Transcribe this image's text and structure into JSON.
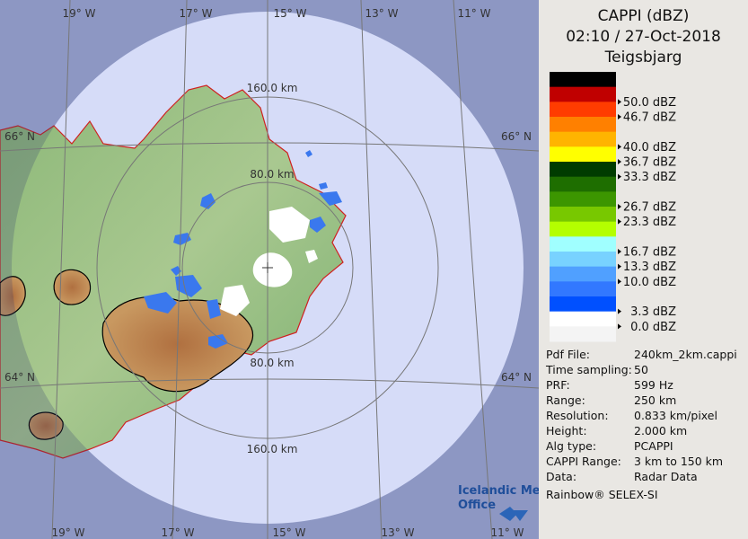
{
  "map": {
    "range_labels": [
      "160.0 km",
      "80.0 km",
      "80.0 km",
      "160.0 km"
    ],
    "lon_top": [
      "19° W",
      "17° W",
      "15° W",
      "13° W",
      "11° W"
    ],
    "lon_bottom": [
      "19° W",
      "17° W",
      "15° W",
      "13° W",
      "11° W"
    ],
    "lat_left": [
      "66° N",
      "64° N"
    ],
    "lat_right": [
      "66° N",
      "64° N"
    ],
    "logo": [
      "Icelandic Met",
      "Office"
    ]
  },
  "header": {
    "title": "CAPPI (dBZ)",
    "time": "02:10 / 27-Oct-2018",
    "site": "Teigsbjarg"
  },
  "legend": {
    "bands": [
      {
        "color": "#000000",
        "label": null
      },
      {
        "color": "#c00000",
        "label": "50.0 dBZ"
      },
      {
        "color": "#ff3c00",
        "label": "46.7 dBZ"
      },
      {
        "color": "#ff8000",
        "label": null
      },
      {
        "color": "#ffb400",
        "label": "40.0 dBZ"
      },
      {
        "color": "#ffff00",
        "label": "36.7 dBZ"
      },
      {
        "color": "#003c00",
        "label": "33.3 dBZ"
      },
      {
        "color": "#1e6e00",
        "label": null
      },
      {
        "color": "#3c9600",
        "label": "26.7 dBZ"
      },
      {
        "color": "#78c800",
        "label": "23.3 dBZ"
      },
      {
        "color": "#b4ff00",
        "label": null
      },
      {
        "color": "#a0ffff",
        "label": "16.7 dBZ"
      },
      {
        "color": "#78d2ff",
        "label": "13.3 dBZ"
      },
      {
        "color": "#50a0ff",
        "label": "10.0 dBZ"
      },
      {
        "color": "#3278ff",
        "label": null
      },
      {
        "color": "#0050ff",
        "label": "3.3 dBZ"
      },
      {
        "color": "#ffffff",
        "label": "0.0 dBZ"
      },
      {
        "color": "#f4f4f4",
        "label": null
      }
    ]
  },
  "info": {
    "rows": [
      [
        "Pdf File:",
        "240km_2km.cappi"
      ],
      [
        "Time sampling:",
        "50"
      ],
      [
        "PRF:",
        "599 Hz"
      ],
      [
        "Range:",
        "250 km"
      ],
      [
        "Resolution:",
        "0.833 km/pixel"
      ],
      [
        "Height:",
        "2.000 km"
      ],
      [
        "Alg type:",
        "PCAPPI"
      ],
      [
        "CAPPI Range:",
        "3 km to 150 km"
      ],
      [
        "Data:",
        "Radar Data"
      ]
    ],
    "footer": "Rainbow® SELEX-SI"
  }
}
